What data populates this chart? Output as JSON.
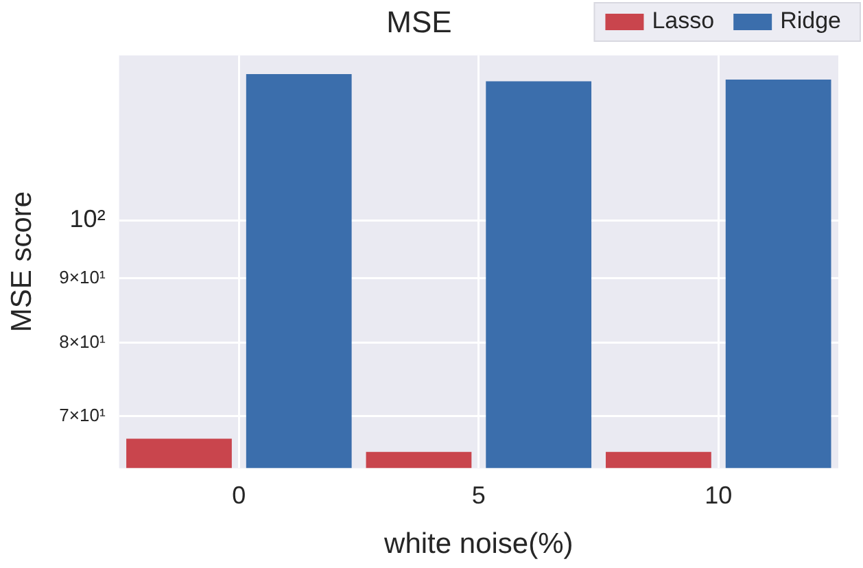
{
  "chart_data": {
    "type": "bar",
    "title": "MSE",
    "xlabel": "white noise(%)",
    "ylabel": "MSE score",
    "categories": [
      "0",
      "5",
      "10"
    ],
    "series": [
      {
        "name": "Lasso",
        "color": "#c9454d",
        "values": [
          67.2,
          65.6,
          65.6
        ]
      },
      {
        "name": "Ridge",
        "color": "#3b6eac",
        "values": [
          130.5,
          128.8,
          129.2
        ]
      }
    ],
    "log": "y",
    "ylim": [
      63.7,
      135
    ],
    "yticks": [
      {
        "value": 70,
        "label": "7×10¹"
      },
      {
        "value": 80,
        "label": "8×10¹"
      },
      {
        "value": 90,
        "label": "9×10¹"
      },
      {
        "value": 100,
        "label": "10²"
      }
    ],
    "grid": true,
    "legend": "top right"
  }
}
